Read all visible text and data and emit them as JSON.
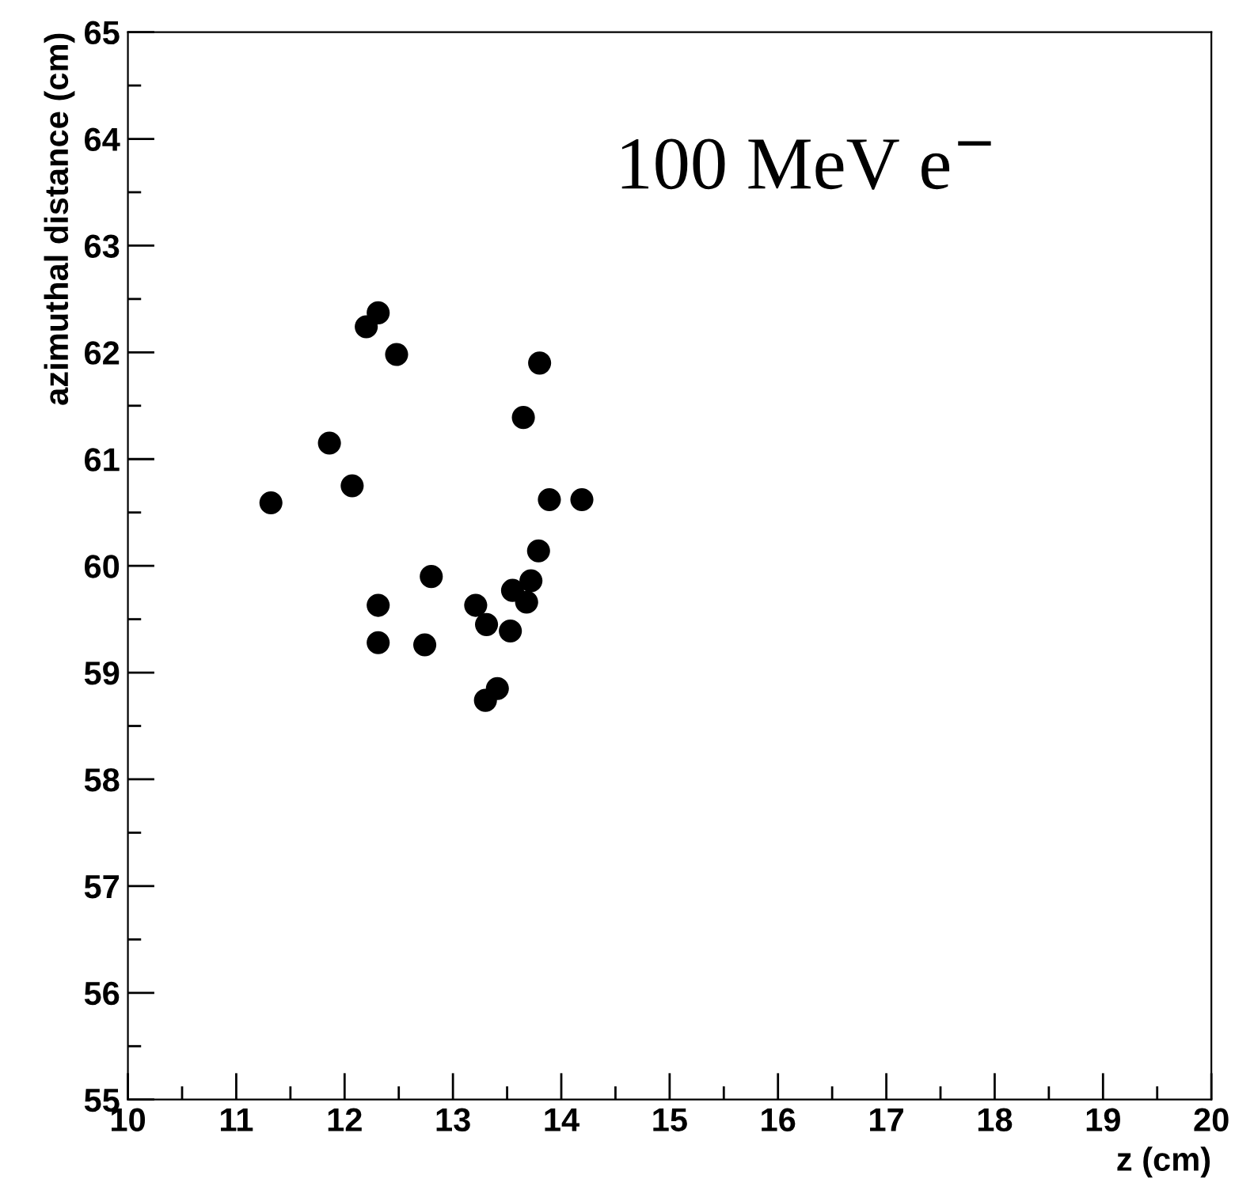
{
  "chart_data": {
    "type": "scatter",
    "xlabel": "z (cm)",
    "ylabel": "azimuthal distance (cm)",
    "annotations": [
      "100 MeV e$^{−}$"
    ],
    "xlim": [
      10,
      20
    ],
    "xticks": [
      10,
      11,
      12,
      13,
      14,
      15,
      16,
      17,
      18,
      19,
      20
    ],
    "ylim": [
      55,
      65
    ],
    "yticks": [
      55,
      56,
      57,
      58,
      59,
      60,
      61,
      62,
      63,
      64,
      65
    ],
    "grid": false,
    "legend": false,
    "marker": "circle",
    "series": [
      {
        "color": "#000000",
        "x": [
          12.31,
          12.2,
          12.48,
          13.8,
          13.65,
          11.86,
          12.07,
          11.32,
          13.89,
          14.19,
          13.79,
          12.8,
          13.72,
          13.55,
          13.68,
          12.31,
          13.21,
          13.31,
          13.53,
          12.31,
          12.74,
          13.41,
          13.3
        ],
        "values": [
          62.37,
          62.24,
          61.98,
          61.9,
          61.39,
          61.15,
          60.75,
          60.59,
          60.62,
          60.62,
          60.14,
          59.9,
          59.86,
          59.77,
          59.66,
          59.63,
          59.63,
          59.45,
          59.39,
          59.28,
          59.26,
          58.85,
          58.74
        ]
      }
    ]
  }
}
